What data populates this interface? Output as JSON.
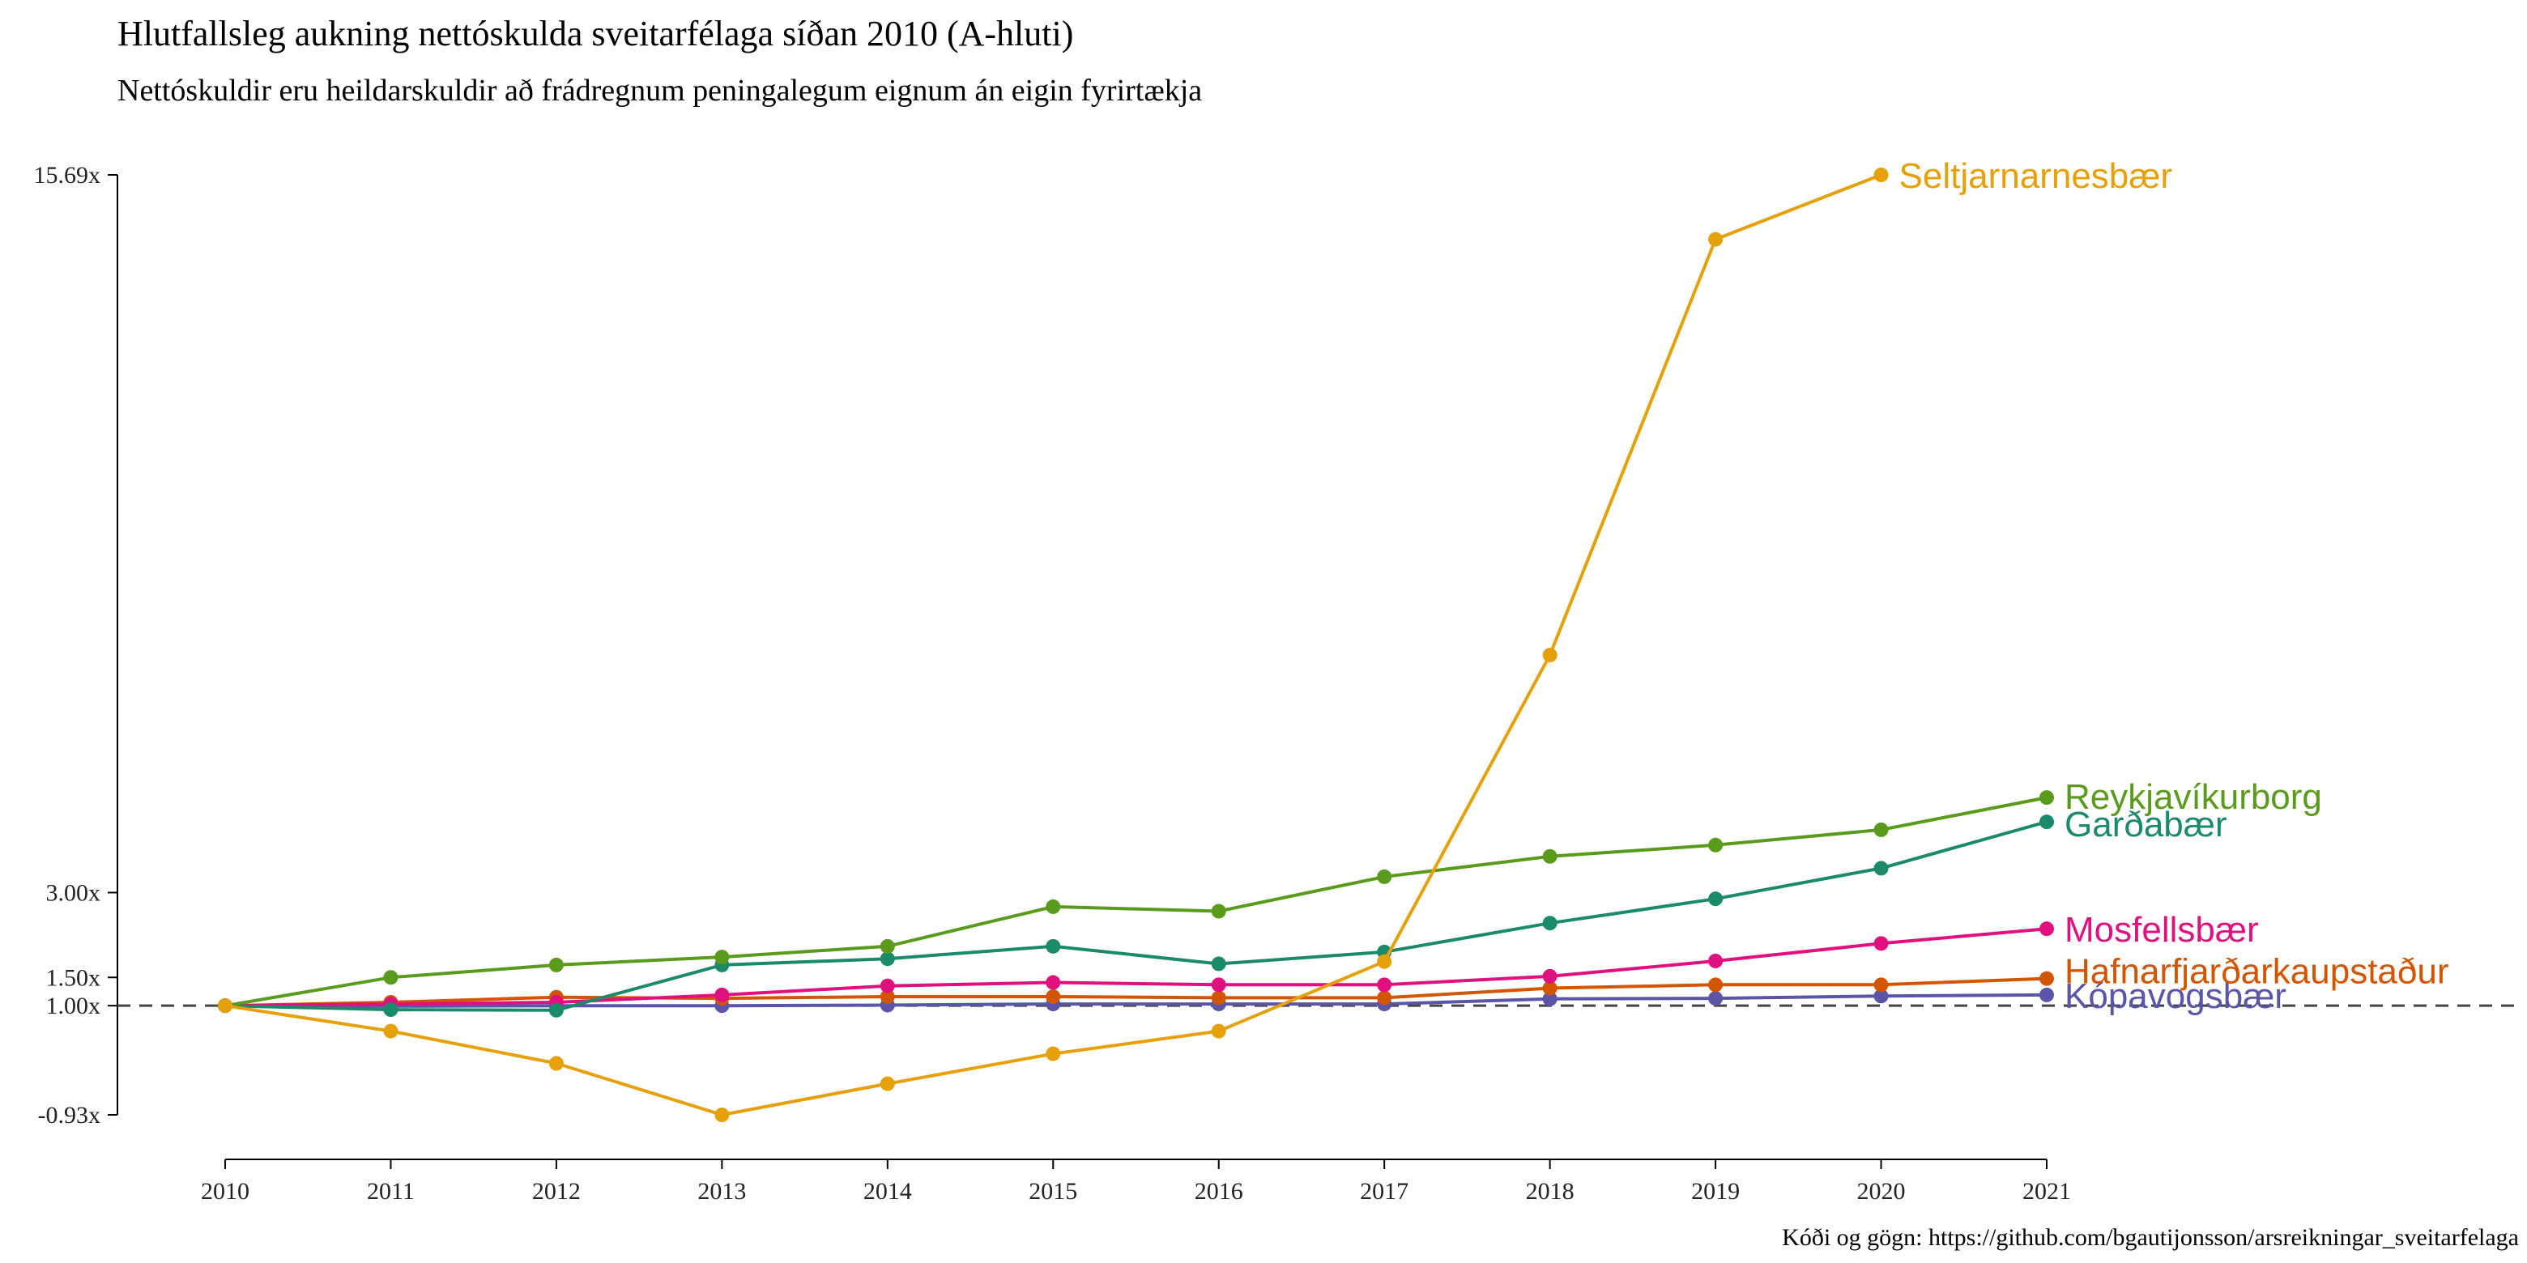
{
  "chart_data": {
    "type": "line",
    "title": "Hlutfallsleg aukning nettóskulda sveitarfélaga síðan 2010 (A-hluti)",
    "subtitle": "Nettóskuldir eru heildarskuldir að frádregnum peningalegum eignum án eigin fyrirtækja",
    "caption": "Kóði og gögn: https://github.com/bgautijonsson/arsreikningar_sveitarfelaga",
    "x": [
      2010,
      2011,
      2012,
      2013,
      2014,
      2015,
      2016,
      2017,
      2018,
      2019,
      2020,
      2021
    ],
    "y_ticks": [
      15.69,
      3.0,
      1.5,
      1.0,
      -0.93
    ],
    "y_tick_labels": [
      "15.69x",
      "3.00x",
      "1.50x",
      "1.00x",
      "-0.93x"
    ],
    "ylim": [
      -0.93,
      15.69
    ],
    "reference_line": 1.0,
    "grid": false,
    "series": [
      {
        "name": "Seltjarnarnesbær",
        "color": "#E6A00A",
        "values": [
          1.0,
          0.55,
          -0.02,
          -0.93,
          -0.38,
          0.15,
          0.55,
          1.78,
          7.2,
          14.55,
          15.69,
          null
        ]
      },
      {
        "name": "Reykjavíkurborg",
        "color": "#5A9A1C",
        "values": [
          1.0,
          1.5,
          1.72,
          1.86,
          2.05,
          2.75,
          2.67,
          3.28,
          3.64,
          3.84,
          4.11,
          4.68
        ]
      },
      {
        "name": "Garðabær",
        "color": "#1B8A6B",
        "values": [
          1.0,
          0.93,
          0.92,
          1.72,
          1.83,
          2.05,
          1.74,
          1.95,
          2.46,
          2.89,
          3.43,
          4.25
        ]
      },
      {
        "name": "Mosfellsbær",
        "color": "#E0117F",
        "values": [
          1.0,
          1.03,
          1.06,
          1.19,
          1.35,
          1.41,
          1.37,
          1.37,
          1.52,
          1.79,
          2.1,
          2.36
        ]
      },
      {
        "name": "Hafnarfjarðarkaupstaður",
        "color": "#D45500",
        "values": [
          1.0,
          1.06,
          1.15,
          1.13,
          1.16,
          1.16,
          1.14,
          1.14,
          1.31,
          1.37,
          1.37,
          1.48
        ]
      },
      {
        "name": "Kópavogsbær",
        "color": "#5B55A8",
        "values": [
          1.0,
          0.99,
          1.0,
          1.0,
          1.01,
          1.03,
          1.03,
          1.03,
          1.12,
          1.13,
          1.17,
          1.19
        ]
      }
    ]
  }
}
